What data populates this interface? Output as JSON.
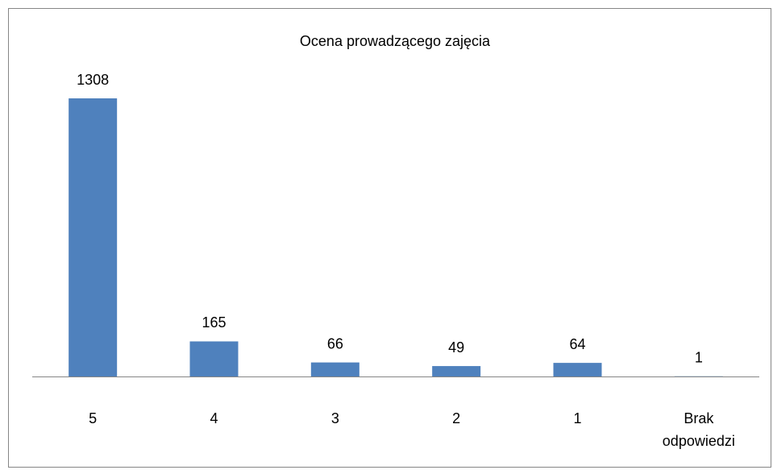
{
  "chart_data": {
    "type": "bar",
    "title": "Ocena prowadzącego zajęcia",
    "categories": [
      "5",
      "4",
      "3",
      "2",
      "1",
      "Brak odpowiedzi"
    ],
    "values": [
      1308,
      165,
      66,
      49,
      64,
      1
    ],
    "color": "#4f81bd"
  }
}
